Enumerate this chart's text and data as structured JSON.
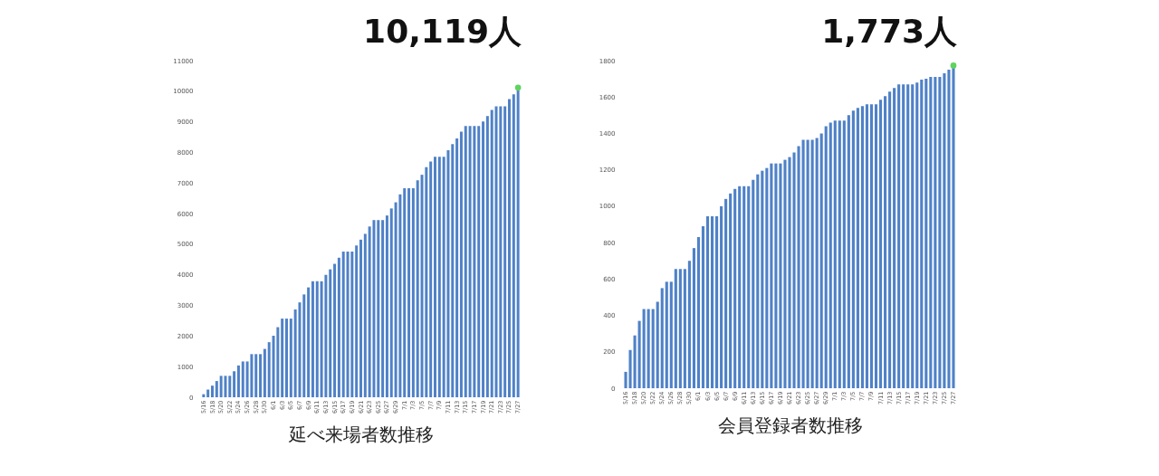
{
  "chart_data": [
    {
      "type": "bar",
      "title": "10,119人",
      "xlabel": "延べ来場者数推移",
      "categories": [
        "5/16",
        null,
        "5/18",
        null,
        "5/20",
        null,
        "5/22",
        null,
        "5/24",
        null,
        "5/26",
        null,
        "5/28",
        null,
        "5/30",
        null,
        "6/1",
        null,
        "6/3",
        null,
        "6/5",
        null,
        "6/7",
        null,
        "6/9",
        null,
        "6/11",
        null,
        "6/13",
        null,
        "6/15",
        null,
        "6/17",
        null,
        "6/19",
        null,
        "6/21",
        null,
        "6/23",
        null,
        "6/25",
        null,
        "6/27",
        null,
        "6/29",
        null,
        "7/1",
        null,
        "7/3",
        null,
        "7/5",
        null,
        "7/7",
        null,
        "7/9",
        null,
        "7/11",
        null,
        "7/13",
        null,
        "7/15",
        null,
        "7/17",
        null,
        "7/19",
        null,
        "7/21",
        null,
        "7/23",
        null,
        "7/25",
        null,
        "7/27"
      ],
      "series": [
        {
          "color": "#4f81c7",
          "values": [
            100,
            250,
            380,
            530,
            700,
            700,
            700,
            850,
            1040,
            1170,
            1170,
            1410,
            1410,
            1410,
            1580,
            1800,
            2010,
            2290,
            2570,
            2570,
            2570,
            2870,
            3100,
            3360,
            3590,
            3790,
            3790,
            3790,
            4000,
            4180,
            4360,
            4560,
            4760,
            4760,
            4760,
            4960,
            5150,
            5340,
            5580,
            5790,
            5790,
            5790,
            5940,
            6170,
            6370,
            6630,
            6830,
            6830,
            6830,
            7090,
            7270,
            7520,
            7700,
            7860,
            7860,
            7860,
            8070,
            8270,
            8460,
            8680,
            8860,
            8860,
            8860,
            8860,
            9010,
            9190,
            9390,
            9510,
            9510,
            9510,
            9740,
            9900,
            10119
          ]
        },
        {
          "type": "scatter",
          "color": "#5fd35f",
          "marker": "circle",
          "x": [
            "7/27"
          ],
          "values": [
            10119
          ]
        }
      ],
      "ylim": [
        0,
        11000
      ],
      "yticks": [
        0,
        1000,
        2000,
        3000,
        4000,
        5000,
        6000,
        7000,
        8000,
        9000,
        10000,
        11000
      ]
    },
    {
      "type": "bar",
      "title": "1,773人",
      "xlabel": "会員登録者数推移",
      "categories": [
        "5/16",
        null,
        "5/18",
        null,
        "5/20",
        null,
        "5/22",
        null,
        "5/24",
        null,
        "5/26",
        null,
        "5/28",
        null,
        "5/30",
        null,
        "6/1",
        null,
        "6/3",
        null,
        "6/5",
        null,
        "6/7",
        null,
        "6/9",
        null,
        "6/11",
        null,
        "6/13",
        null,
        "6/15",
        null,
        "6/17",
        null,
        "6/19",
        null,
        "6/21",
        null,
        "6/23",
        null,
        "6/25",
        null,
        "6/27",
        null,
        "6/29",
        null,
        "7/1",
        null,
        "7/3",
        null,
        "7/5",
        null,
        "7/7",
        null,
        "7/9",
        null,
        "7/11",
        null,
        "7/13",
        null,
        "7/15",
        null,
        "7/17",
        null,
        "7/19",
        null,
        "7/21",
        null,
        "7/23",
        null,
        "7/25",
        null,
        "7/27"
      ],
      "series": [
        {
          "color": "#4f81c7",
          "values": [
            90,
            210,
            290,
            370,
            435,
            435,
            435,
            475,
            550,
            585,
            585,
            655,
            655,
            655,
            700,
            770,
            830,
            890,
            945,
            945,
            945,
            1000,
            1040,
            1070,
            1095,
            1110,
            1110,
            1110,
            1145,
            1175,
            1195,
            1210,
            1235,
            1235,
            1235,
            1255,
            1270,
            1295,
            1330,
            1365,
            1365,
            1365,
            1375,
            1400,
            1440,
            1460,
            1470,
            1470,
            1470,
            1500,
            1525,
            1540,
            1550,
            1560,
            1560,
            1560,
            1585,
            1605,
            1630,
            1650,
            1670,
            1670,
            1670,
            1670,
            1680,
            1695,
            1700,
            1710,
            1710,
            1710,
            1730,
            1750,
            1773
          ]
        },
        {
          "type": "scatter",
          "color": "#5fd35f",
          "marker": "circle",
          "x": [
            "7/27"
          ],
          "values": [
            1773
          ]
        }
      ],
      "ylim": [
        0,
        1800
      ],
      "yticks": [
        0,
        200,
        400,
        600,
        800,
        1000,
        1200,
        1400,
        1600,
        1800
      ]
    }
  ]
}
